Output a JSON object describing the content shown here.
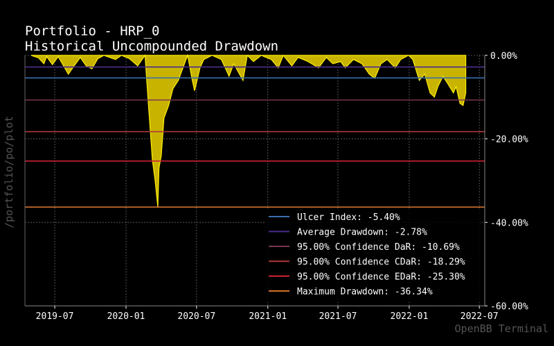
{
  "chart_data": {
    "type": "area",
    "title_line1": "Portfolio - HRP_0",
    "title_line2": "Historical Uncompounded Drawdown",
    "side_label": "/portfolio/po/plot",
    "watermark": "OpenBB Terminal",
    "colors": {
      "background": "#000000",
      "area": "#c8b400",
      "area_edge": "#ffee00",
      "grid": "#666666"
    },
    "grid": true,
    "x_range": [
      "2019-04-15",
      "2022-07-15"
    ],
    "x_ticks": [
      "2019-07",
      "2020-01",
      "2020-07",
      "2021-01",
      "2021-07",
      "2022-01",
      "2022-07"
    ],
    "ylim": [
      -60,
      0
    ],
    "y_ticks": [
      {
        "value": 0,
        "label": "0.00%"
      },
      {
        "value": -20,
        "label": "-20.00%"
      },
      {
        "value": -40,
        "label": "-40.00%"
      },
      {
        "value": -60,
        "label": "-60.00%"
      }
    ],
    "series": [
      {
        "name": "Drawdown",
        "points": [
          [
            "2019-05-01",
            0
          ],
          [
            "2019-05-20",
            -0.6
          ],
          [
            "2019-06-03",
            -2.0
          ],
          [
            "2019-06-10",
            -0.3
          ],
          [
            "2019-06-25",
            -2.2
          ],
          [
            "2019-07-10",
            -0.3
          ],
          [
            "2019-08-05",
            -4.5
          ],
          [
            "2019-08-20",
            -2.5
          ],
          [
            "2019-09-05",
            -0.5
          ],
          [
            "2019-09-20",
            -2.5
          ],
          [
            "2019-10-05",
            -3.2
          ],
          [
            "2019-10-20",
            -0.8
          ],
          [
            "2019-11-05",
            0
          ],
          [
            "2019-12-05",
            -1.0
          ],
          [
            "2019-12-20",
            0
          ],
          [
            "2020-01-10",
            -0.8
          ],
          [
            "2020-01-31",
            -2.5
          ],
          [
            "2020-02-19",
            0
          ],
          [
            "2020-02-28",
            -12.0
          ],
          [
            "2020-03-09",
            -25.0
          ],
          [
            "2020-03-16",
            -30.0
          ],
          [
            "2020-03-23",
            -36.34
          ],
          [
            "2020-03-26",
            -27.0
          ],
          [
            "2020-04-01",
            -24.0
          ],
          [
            "2020-04-08",
            -15.0
          ],
          [
            "2020-04-20",
            -12.0
          ],
          [
            "2020-05-01",
            -8.0
          ],
          [
            "2020-05-15",
            -6.0
          ],
          [
            "2020-06-08",
            0
          ],
          [
            "2020-06-20",
            -6.0
          ],
          [
            "2020-06-26",
            -8.5
          ],
          [
            "2020-07-10",
            -3.0
          ],
          [
            "2020-07-20",
            -1.0
          ],
          [
            "2020-08-10",
            0
          ],
          [
            "2020-09-03",
            -1.0
          ],
          [
            "2020-09-23",
            -5.0
          ],
          [
            "2020-10-05",
            -2.0
          ],
          [
            "2020-10-29",
            -6.0
          ],
          [
            "2020-11-09",
            0
          ],
          [
            "2020-11-25",
            -1.5
          ],
          [
            "2020-12-15",
            0
          ],
          [
            "2021-01-10",
            -1.0
          ],
          [
            "2021-01-28",
            -3.0
          ],
          [
            "2021-02-10",
            0
          ],
          [
            "2021-03-04",
            -2.5
          ],
          [
            "2021-03-20",
            -0.5
          ],
          [
            "2021-04-15",
            -1.5
          ],
          [
            "2021-05-12",
            -3.0
          ],
          [
            "2021-06-01",
            -0.5
          ],
          [
            "2021-06-18",
            -2.0
          ],
          [
            "2021-07-08",
            -1.5
          ],
          [
            "2021-07-20",
            -3.0
          ],
          [
            "2021-08-10",
            -1.0
          ],
          [
            "2021-09-01",
            -2.0
          ],
          [
            "2021-09-20",
            -4.5
          ],
          [
            "2021-10-04",
            -5.5
          ],
          [
            "2021-10-20",
            -2.0
          ],
          [
            "2021-11-05",
            -1.0
          ],
          [
            "2021-11-26",
            -3.0
          ],
          [
            "2021-12-10",
            -1.0
          ],
          [
            "2021-12-30",
            0
          ],
          [
            "2022-01-10",
            -1.0
          ],
          [
            "2022-01-27",
            -6.0
          ],
          [
            "2022-02-10",
            -4.5
          ],
          [
            "2022-02-24",
            -9.0
          ],
          [
            "2022-03-07",
            -10.0
          ],
          [
            "2022-03-16",
            -7.5
          ],
          [
            "2022-03-29",
            -5.0
          ],
          [
            "2022-04-12",
            -7.0
          ],
          [
            "2022-04-25",
            -9.0
          ],
          [
            "2022-05-02",
            -7.5
          ],
          [
            "2022-05-12",
            -11.5
          ],
          [
            "2022-05-20",
            -12.0
          ],
          [
            "2022-05-27",
            -9.0
          ]
        ]
      }
    ],
    "reference_lines": [
      {
        "name": "Ulcer Index: -5.40%",
        "value": -5.4,
        "color": "#3a6fb0"
      },
      {
        "name": "Average Drawdown: -2.78%",
        "value": -2.78,
        "color": "#4b2c8a"
      },
      {
        "name": "95.00% Confidence DaR: -10.69%",
        "value": -10.69,
        "color": "#7a3552"
      },
      {
        "name": "95.00% Confidence CDaR: -18.29%",
        "value": -18.29,
        "color": "#b03838"
      },
      {
        "name": "95.00% Confidence EDaR: -25.30%",
        "value": -25.3,
        "color": "#cc2233"
      },
      {
        "name": "Maximum Drawdown: -36.34%",
        "value": -36.34,
        "color": "#e07a30"
      }
    ],
    "legend_position": "lower-right"
  }
}
